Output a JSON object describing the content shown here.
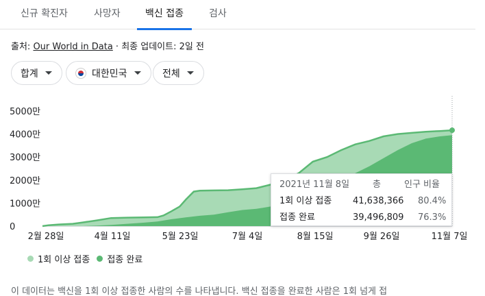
{
  "tabs": [
    {
      "label": "신규 확진자"
    },
    {
      "label": "사망자"
    },
    {
      "label": "백신 접종"
    },
    {
      "label": "검사"
    }
  ],
  "active_tab": 2,
  "source": {
    "prefix": "출처: ",
    "link": "Our World in Data",
    "suffix": " · 최종 업데이트: 2일 전"
  },
  "filters": {
    "metric": "합계",
    "country": "대한민국",
    "range": "전체"
  },
  "colors": {
    "series1": "#a8dab5",
    "series2": "#5bb974",
    "line": "#5bb974",
    "accent": "#1a73e8"
  },
  "chart_data": {
    "type": "area",
    "y_ticks": [
      "5000만",
      "4000만",
      "3000만",
      "2000만",
      "1000만",
      "0"
    ],
    "ylim": [
      0,
      50000000
    ],
    "x_ticks": [
      "2월 28일",
      "4월 11일",
      "5월 23일",
      "7월 4일",
      "8월 15일",
      "9월 26일",
      "11월 7일"
    ],
    "series": [
      {
        "name": "1회 이상 접종",
        "points": [
          [
            0,
            0
          ],
          [
            3,
            400000
          ],
          [
            8,
            700000
          ],
          [
            15,
            1000000
          ],
          [
            20,
            1600000
          ],
          [
            27,
            2500000
          ],
          [
            34,
            3500000
          ],
          [
            42,
            3700000
          ],
          [
            50,
            3800000
          ],
          [
            57,
            3900000
          ],
          [
            60,
            4600000
          ],
          [
            64,
            6500000
          ],
          [
            68,
            8500000
          ],
          [
            71,
            11500000
          ],
          [
            75,
            15000000
          ],
          [
            78,
            15400000
          ],
          [
            85,
            15500000
          ],
          [
            92,
            15600000
          ],
          [
            99,
            16000000
          ],
          [
            106,
            16500000
          ],
          [
            113,
            18000000
          ],
          [
            120,
            20000000
          ],
          [
            127,
            23000000
          ],
          [
            134,
            28000000
          ],
          [
            141,
            30000000
          ],
          [
            148,
            33000000
          ],
          [
            155,
            35500000
          ],
          [
            162,
            37000000
          ],
          [
            169,
            39000000
          ],
          [
            176,
            40000000
          ],
          [
            183,
            40500000
          ],
          [
            190,
            41000000
          ],
          [
            197,
            41300000
          ],
          [
            203,
            41638366
          ]
        ]
      },
      {
        "name": "접종 완료",
        "points": [
          [
            0,
            0
          ],
          [
            20,
            0
          ],
          [
            27,
            200000
          ],
          [
            34,
            500000
          ],
          [
            42,
            1000000
          ],
          [
            50,
            1500000
          ],
          [
            57,
            2000000
          ],
          [
            64,
            3000000
          ],
          [
            71,
            3800000
          ],
          [
            78,
            4500000
          ],
          [
            85,
            5000000
          ],
          [
            92,
            6000000
          ],
          [
            99,
            7000000
          ],
          [
            106,
            7500000
          ],
          [
            113,
            8500000
          ],
          [
            120,
            10000000
          ],
          [
            127,
            12500000
          ],
          [
            134,
            15000000
          ],
          [
            141,
            17500000
          ],
          [
            148,
            20000000
          ],
          [
            155,
            23000000
          ],
          [
            162,
            26000000
          ],
          [
            169,
            29500000
          ],
          [
            176,
            33000000
          ],
          [
            183,
            36000000
          ],
          [
            190,
            38000000
          ],
          [
            197,
            39000000
          ],
          [
            203,
            39496809
          ]
        ]
      }
    ]
  },
  "tooltip": {
    "date": "2021년 11월 8일",
    "col_total": "총",
    "col_ratio": "인구 비율",
    "rows": [
      {
        "label": "1회 이상 접종",
        "value": "41,638,366",
        "ratio": "80.4%"
      },
      {
        "label": "접종 완료",
        "value": "39,496,809",
        "ratio": "76.3%"
      }
    ]
  },
  "legend": [
    {
      "label": "1회 이상 접종"
    },
    {
      "label": "접종 완료"
    }
  ],
  "description": "이 데이터는 백신을 1회 이상 접종한 사람의 수를 나타냅니다. 백신 접종을 완료한 사람은 1회 넘게 접"
}
